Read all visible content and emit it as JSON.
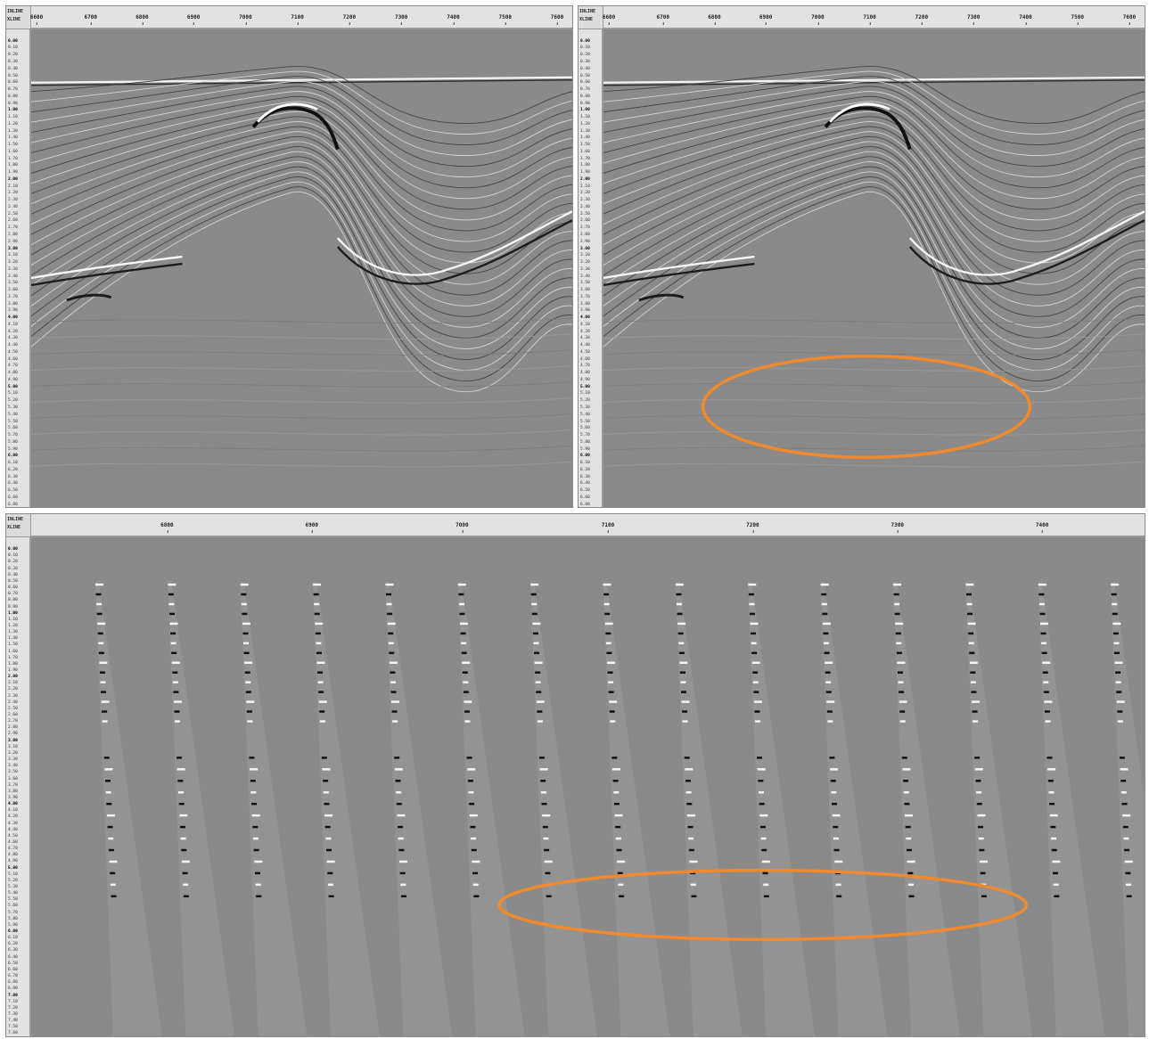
{
  "panels": {
    "left": {
      "corner_top": "INLINE",
      "corner_bottom": "XLINE",
      "x_ticks": [
        "6600",
        "6700",
        "6800",
        "6900",
        "7000",
        "7100",
        "7200",
        "7300",
        "7400",
        "7500",
        "7600"
      ],
      "y_ticks": [
        "0.00",
        "0.10",
        "0.20",
        "0.30",
        "0.40",
        "0.50",
        "0.60",
        "0.70",
        "0.80",
        "0.90",
        "1.00",
        "1.10",
        "1.20",
        "1.30",
        "1.40",
        "1.50",
        "1.60",
        "1.70",
        "1.80",
        "1.90",
        "2.00",
        "2.10",
        "2.20",
        "2.30",
        "2.40",
        "2.50",
        "2.60",
        "2.70",
        "2.80",
        "2.90",
        "3.00",
        "3.10",
        "3.20",
        "3.30",
        "3.40",
        "3.50",
        "3.60",
        "3.70",
        "3.80",
        "3.90",
        "4.00",
        "4.10",
        "4.20",
        "4.30",
        "4.40",
        "4.50",
        "4.60",
        "4.70",
        "4.80",
        "4.90",
        "5.00",
        "5.10",
        "5.20",
        "5.30",
        "5.40",
        "5.50",
        "5.60",
        "5.70",
        "5.80",
        "5.90",
        "6.00",
        "6.10",
        "6.20",
        "6.30",
        "6.40",
        "6.50",
        "6.60",
        "6.80"
      ]
    },
    "right": {
      "corner_top": "INLINE",
      "corner_bottom": "XLINE",
      "x_ticks": [
        "6600",
        "6700",
        "6800",
        "6900",
        "7000",
        "7100",
        "7200",
        "7300",
        "7400",
        "7500",
        "7600"
      ],
      "y_ticks": [
        "0.00",
        "0.10",
        "0.20",
        "0.30",
        "0.40",
        "0.50",
        "0.60",
        "0.70",
        "0.80",
        "0.90",
        "1.00",
        "1.10",
        "1.20",
        "1.30",
        "1.40",
        "1.50",
        "1.60",
        "1.70",
        "1.80",
        "1.90",
        "2.00",
        "2.10",
        "2.20",
        "2.30",
        "2.40",
        "2.50",
        "2.60",
        "2.70",
        "2.80",
        "2.90",
        "3.00",
        "3.10",
        "3.20",
        "3.30",
        "3.40",
        "3.50",
        "3.60",
        "3.70",
        "3.80",
        "3.90",
        "4.00",
        "4.10",
        "4.20",
        "4.30",
        "4.40",
        "4.50",
        "4.60",
        "4.70",
        "4.80",
        "4.90",
        "5.00",
        "5.10",
        "5.20",
        "5.30",
        "5.40",
        "5.50",
        "5.60",
        "5.70",
        "5.80",
        "5.90",
        "6.00",
        "6.10",
        "6.20",
        "6.30",
        "6.40",
        "6.50",
        "6.60",
        "6.80"
      ]
    },
    "bottom": {
      "corner_top": "INLINE",
      "corner_bottom": "XLINE",
      "x_ticks": [
        "6800",
        "6900",
        "7000",
        "7100",
        "7200",
        "7300",
        "7400"
      ],
      "y_ticks": [
        "0.00",
        "0.10",
        "0.20",
        "0.30",
        "0.40",
        "0.50",
        "0.60",
        "0.70",
        "0.80",
        "0.90",
        "1.00",
        "1.10",
        "1.20",
        "1.30",
        "1.40",
        "1.50",
        "1.60",
        "1.70",
        "1.80",
        "1.90",
        "2.00",
        "2.10",
        "2.20",
        "2.30",
        "2.40",
        "2.50",
        "2.60",
        "2.70",
        "2.80",
        "2.90",
        "3.00",
        "3.10",
        "3.20",
        "3.30",
        "3.40",
        "3.50",
        "3.60",
        "3.70",
        "3.80",
        "3.90",
        "4.00",
        "4.10",
        "4.20",
        "4.30",
        "4.40",
        "4.50",
        "4.60",
        "4.70",
        "4.80",
        "4.90",
        "5.00",
        "5.10",
        "5.20",
        "5.30",
        "5.40",
        "5.50",
        "5.60",
        "5.70",
        "5.80",
        "5.90",
        "6.00",
        "6.10",
        "6.20",
        "6.30",
        "6.40",
        "6.50",
        "6.60",
        "6.70",
        "6.80",
        "6.90",
        "7.00",
        "7.10",
        "7.20",
        "7.30",
        "7.40",
        "7.50",
        "7.60"
      ]
    }
  },
  "colors": {
    "background_gray": "#8a8a8a",
    "highlight_orange": "#f08a2c",
    "axis_bg": "#e2e2e2"
  }
}
